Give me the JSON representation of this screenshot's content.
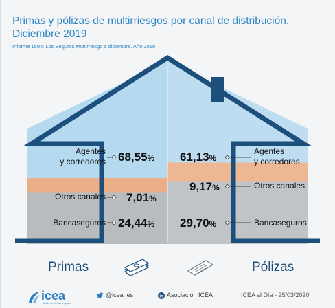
{
  "title": "Primas y pólizas de multirriesgos por canal de distribución. Diciembre 2019",
  "subtitle": "Informe 1594: Los Seguros Multirriesgo a diciembre. Año 2019",
  "chart_data": {
    "type": "bar",
    "categories": [
      "Primas",
      "Pólizas"
    ],
    "series": [
      {
        "name": "Agentes y corredores",
        "values": [
          68.55,
          61.13
        ]
      },
      {
        "name": "Otros canales",
        "values": [
          7.01,
          9.17
        ]
      },
      {
        "name": "Bancaseguros",
        "values": [
          24.44,
          29.7
        ]
      }
    ],
    "stacked": true,
    "unit": "%"
  },
  "labels": {
    "left": {
      "agentes_line1": "Agentes",
      "agentes_line2": "y corredores",
      "otros": "Otros canales",
      "banca": "Bancaseguros",
      "pct_agentes": "68,55",
      "pct_otros": "7,01",
      "pct_banca": "24,44",
      "category": "Primas"
    },
    "right": {
      "agentes_line1": "Agentes",
      "agentes_line2": "y corredores",
      "otros": "Otros canales",
      "banca": "Bancaseguros",
      "pct_agentes": "61,13",
      "pct_otros": "9,17",
      "pct_banca": "29,70",
      "category": "Pólizas"
    },
    "pct_sign": "%"
  },
  "colors": {
    "agentes": "#b5d9ef",
    "otros": "#ecae86",
    "banca": "#b8bcbf",
    "outline": "#1c4f7c",
    "accent": "#2f86c5"
  },
  "footer": {
    "logo": "icea",
    "logo_sub": "al día de lo que importa",
    "twitter": "@icea_es",
    "linkedin": "Asociación ICEA",
    "date": "ICEA al Día - 25/03/2020"
  },
  "icons": [
    "banknotes-icon",
    "policy-document-icon",
    "twitter-icon",
    "linkedin-icon",
    "icea-logo-icon"
  ]
}
